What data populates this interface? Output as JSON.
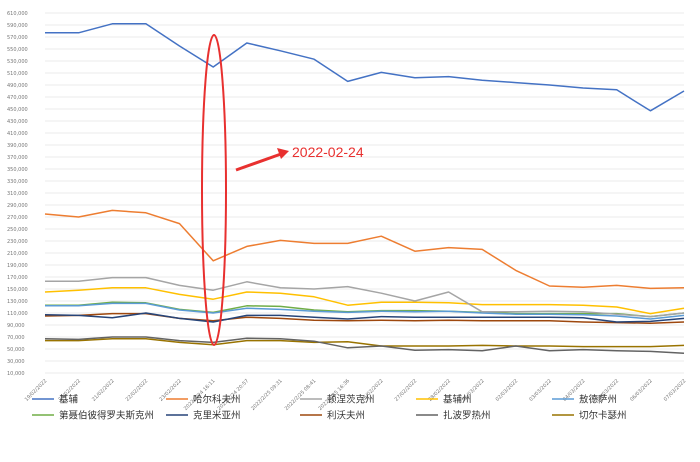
{
  "chart_data": {
    "type": "line",
    "title": "",
    "xlabel": "",
    "ylabel": "",
    "ylim": [
      10000,
      610000
    ],
    "yticks": [
      10000,
      30000,
      50000,
      70000,
      90000,
      110000,
      130000,
      150000,
      170000,
      190000,
      210000,
      230000,
      250000,
      270000,
      290000,
      310000,
      330000,
      350000,
      370000,
      390000,
      410000,
      430000,
      450000,
      470000,
      490000,
      510000,
      530000,
      550000,
      570000,
      590000,
      610000
    ],
    "ytick_labels": [
      "10,000",
      "30,000",
      "50,000",
      "70,000",
      "90,000",
      "110,000",
      "130,000",
      "150,000",
      "170,000",
      "190,000",
      "210,000",
      "230,000",
      "250,000",
      "270,000",
      "290,000",
      "310,000",
      "330,000",
      "350,000",
      "370,000",
      "390,000",
      "410,000",
      "430,000",
      "450,000",
      "470,000",
      "490,000",
      "510,000",
      "530,000",
      "550,000",
      "570,000",
      "590,000",
      "610,000"
    ],
    "grid": true,
    "legend_position": "bottom",
    "categories": [
      "19/02/2022",
      "20/02/2022",
      "21/02/2022",
      "22/02/2022",
      "23/02/2022",
      "2022/2/24 16:11",
      "2022/2/24 20:57",
      "2022/2/25 09:31",
      "2022/2/25 08:41",
      "2022/2/25 16:36",
      "26/02/2022",
      "27/02/2022",
      "28/02/2022",
      "01/03/2022",
      "02/03/2022",
      "03/03/2022",
      "04/03/2022",
      "05/03/2022",
      "06/03/2022",
      "07/03/2022"
    ],
    "series": [
      {
        "name": "基辅",
        "color": "#4472c4",
        "values": [
          577000,
          577000,
          592000,
          592000,
          555000,
          520000,
          560000,
          547000,
          533000,
          496000,
          511000,
          502000,
          504000,
          498000,
          494000,
          490000,
          485000,
          482000,
          447000,
          480000
        ]
      },
      {
        "name": "哈尔科夫州",
        "color": "#ed7d31",
        "values": [
          275000,
          270000,
          281000,
          277000,
          259000,
          197000,
          221000,
          231000,
          226000,
          226000,
          238000,
          213000,
          219000,
          216000,
          181000,
          155000,
          153000,
          156000,
          151000,
          152000
        ]
      },
      {
        "name": "顿涅茨克州",
        "color": "#a5a5a5",
        "values": [
          163000,
          163000,
          169000,
          169000,
          156000,
          148000,
          162000,
          152000,
          150000,
          154000,
          143000,
          130000,
          145000,
          112000,
          112000,
          113000,
          112000,
          108000,
          104000,
          110000
        ]
      },
      {
        "name": "基辅州",
        "color": "#ffc000",
        "values": [
          145000,
          148000,
          152000,
          152000,
          141000,
          133000,
          145000,
          143000,
          137000,
          123000,
          128000,
          128000,
          127000,
          124000,
          124000,
          124000,
          123000,
          120000,
          109000,
          118000
        ]
      },
      {
        "name": "敖德萨州",
        "color": "#5b9bd5",
        "values": [
          122000,
          122000,
          126000,
          126000,
          115000,
          110000,
          118000,
          116000,
          113000,
          111000,
          113000,
          112000,
          113000,
          110000,
          108000,
          108000,
          107000,
          105000,
          100000,
          106000
        ]
      },
      {
        "name": "第聂伯彼得罗夫斯克州",
        "color": "#70ad47",
        "values": [
          123000,
          123000,
          128000,
          127000,
          116000,
          111000,
          122000,
          121000,
          115000,
          112000,
          114000,
          114000,
          113000,
          111000,
          109000,
          109000,
          109000,
          109000,
          104000,
          110000
        ]
      },
      {
        "name": "克里米亚州",
        "color": "#264478",
        "values": [
          107000,
          106000,
          102000,
          110000,
          101000,
          95000,
          106000,
          106000,
          103000,
          100000,
          104000,
          103000,
          103000,
          103000,
          103000,
          103000,
          102000,
          95000,
          96000,
          101000
        ]
      },
      {
        "name": "利沃夫州",
        "color": "#9e480e",
        "values": [
          105000,
          106000,
          109000,
          109000,
          101000,
          97000,
          103000,
          101000,
          98000,
          97000,
          98000,
          97000,
          98000,
          97000,
          97000,
          97000,
          95000,
          94000,
          93000,
          95000
        ]
      },
      {
        "name": "扎波罗热州",
        "color": "#636363",
        "values": [
          67000,
          66000,
          70000,
          70000,
          64000,
          61000,
          68000,
          67000,
          63000,
          52000,
          55000,
          48000,
          49000,
          47000,
          55000,
          47000,
          49000,
          47000,
          46000,
          43000
        ]
      },
      {
        "name": "切尔卡瑟州",
        "color": "#997300",
        "values": [
          64000,
          64000,
          67000,
          67000,
          61000,
          57000,
          64000,
          64000,
          61000,
          62000,
          55000,
          55000,
          55000,
          56000,
          55000,
          55000,
          54000,
          54000,
          54000,
          56000
        ]
      }
    ],
    "annotations": [
      {
        "text": "2022-02-24",
        "color": "#e8302f"
      }
    ]
  }
}
